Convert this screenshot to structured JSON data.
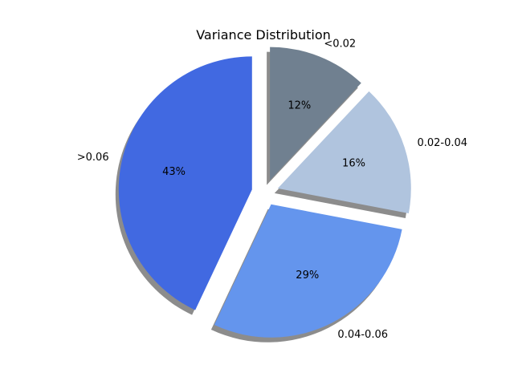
{
  "chart_data": {
    "type": "pie",
    "title": "Variance Distribution",
    "categories": [
      "<0.02",
      "0.02-0.04",
      "0.04-0.06",
      ">0.06"
    ],
    "values": [
      12,
      16,
      29,
      43
    ],
    "percent_labels": [
      "12%",
      "16%",
      "29%",
      "43%"
    ],
    "colors": [
      "#708090",
      "#B0C4DE",
      "#6495ED",
      "#4169E1"
    ],
    "explode": [
      0.1,
      0.1,
      0.1,
      0.1
    ],
    "start_angle_deg": 90,
    "direction": "clockwise",
    "shadow": true
  }
}
